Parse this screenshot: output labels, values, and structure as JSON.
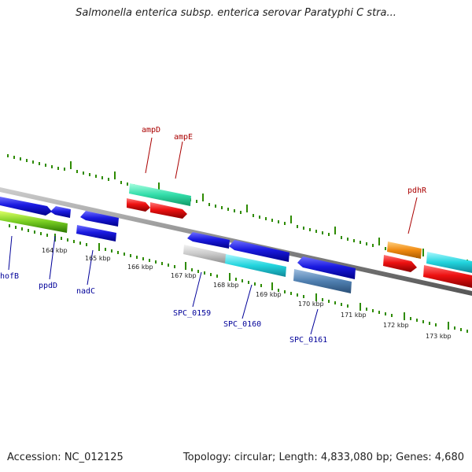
{
  "title": "Salmonella enterica subsp. enterica serovar Paratyphi C stra...",
  "accession": "Accession: NC_012125",
  "topology": "Topology: circular; Length: 4,833,080 bp; Genes: 4,680",
  "kbp_ticks": [
    "164 kbp",
    "165 kbp",
    "166 kbp",
    "167 kbp",
    "168 kbp",
    "169 kbp",
    "170 kbp",
    "171 kbp",
    "172 kbp",
    "173 kbp"
  ],
  "genes": {
    "hofB": "hofB",
    "ppdD": "ppdD",
    "nadC": "nadC",
    "ampD": "ampD",
    "ampE": "ampE",
    "SPC_0159": "SPC_0159",
    "SPC_0160": "SPC_0160",
    "SPC_0161": "SPC_0161",
    "pdhR": "pdhR"
  },
  "colors": {
    "label_blue": "#000099",
    "label_red": "#aa0000",
    "tick_green": "#2e8b00",
    "backbone": "#7a7a7a",
    "blue_feature": "#1111dd",
    "red_feature": "#ee1111",
    "teal_feature": "#33ddaa",
    "cyan_feature": "#22d4dd",
    "steel_feature": "#4f7fb0",
    "orange_feature": "#f08a10",
    "grey_feature": "#c8c8c8",
    "green_feature": "#55bb22"
  }
}
